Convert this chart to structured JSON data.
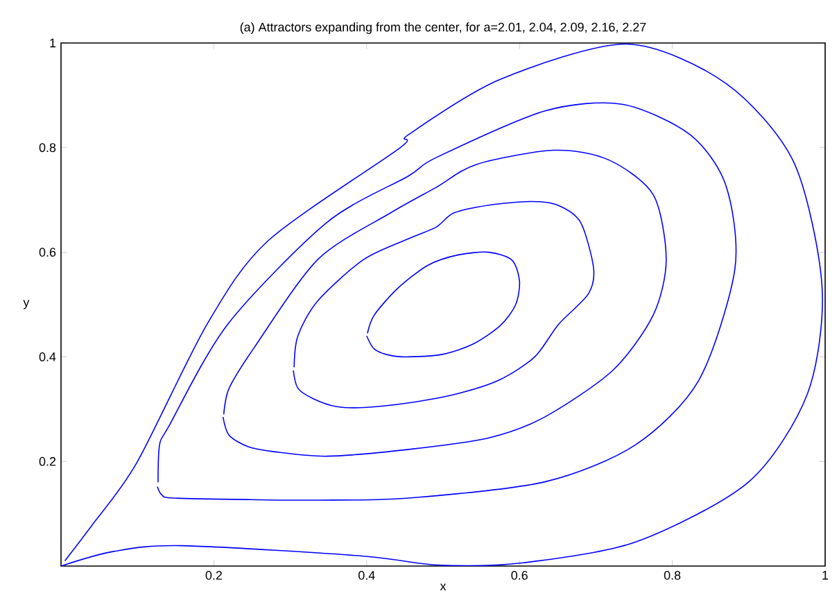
{
  "chart_data": {
    "type": "line",
    "title": "(a) Attractors expanding from the center, for a=2.01, 2.04, 2.09, 2.16, 2.27",
    "xlabel": "x",
    "ylabel": "y",
    "xlim": [
      0,
      1
    ],
    "ylim": [
      0,
      1
    ],
    "xticks": [
      0.2,
      0.4,
      0.6,
      0.8,
      1
    ],
    "yticks": [
      0.2,
      0.4,
      0.6,
      0.8,
      1
    ],
    "grid": false,
    "marker": "none",
    "line_style": "solid",
    "series": [
      {
        "color": "#0000ff",
        "x": [
          0.4,
          0.41,
          0.43,
          0.455,
          0.5,
          0.54,
          0.575,
          0.595,
          0.6,
          0.59,
          0.56,
          0.52,
          0.48,
          0.44,
          0.41,
          0.401
        ],
        "values": [
          0.44,
          0.415,
          0.403,
          0.4,
          0.405,
          0.425,
          0.46,
          0.5,
          0.545,
          0.585,
          0.6,
          0.595,
          0.575,
          0.53,
          0.48,
          0.445
        ]
      },
      {
        "color": "#0000ff",
        "x": [
          0.304,
          0.31,
          0.33,
          0.36,
          0.396,
          0.455,
          0.52,
          0.574,
          0.62,
          0.651,
          0.69,
          0.697,
          0.68,
          0.65,
          0.615,
          0.56,
          0.514,
          0.491,
          0.455,
          0.396,
          0.336,
          0.31,
          0.305
        ],
        "values": [
          0.374,
          0.34,
          0.32,
          0.305,
          0.303,
          0.312,
          0.33,
          0.356,
          0.4,
          0.462,
          0.52,
          0.569,
          0.657,
          0.69,
          0.697,
          0.69,
          0.675,
          0.648,
          0.626,
          0.586,
          0.507,
          0.44,
          0.38
        ]
      },
      {
        "color": "#0000ff",
        "x": [
          0.212,
          0.22,
          0.245,
          0.277,
          0.348,
          0.455,
          0.56,
          0.633,
          0.722,
          0.775,
          0.792,
          0.775,
          0.716,
          0.645,
          0.544,
          0.491,
          0.431,
          0.336,
          0.253,
          0.22,
          0.213
        ],
        "values": [
          0.285,
          0.25,
          0.228,
          0.219,
          0.21,
          0.223,
          0.245,
          0.285,
          0.374,
          0.48,
          0.586,
          0.71,
          0.777,
          0.795,
          0.768,
          0.724,
          0.675,
          0.586,
          0.418,
          0.34,
          0.29
        ]
      },
      {
        "color": "#0000ff",
        "x": [
          0.126,
          0.132,
          0.147,
          0.25,
          0.336,
          0.455,
          0.633,
          0.752,
          0.835,
          0.882,
          0.87,
          0.823,
          0.734,
          0.633,
          0.491,
          0.455,
          0.348,
          0.218,
          0.141,
          0.129,
          0.127
        ],
        "values": [
          0.152,
          0.136,
          0.13,
          0.127,
          0.126,
          0.13,
          0.161,
          0.232,
          0.356,
          0.569,
          0.728,
          0.825,
          0.883,
          0.87,
          0.781,
          0.746,
          0.657,
          0.462,
          0.267,
          0.232,
          0.16
        ]
      },
      {
        "color": "#0000ff",
        "x": [
          0,
          0.069,
          0.158,
          0.396,
          0.491,
          0.603,
          0.752,
          0.9,
          0.977,
          0.996,
          0.959,
          0.87,
          0.74,
          0.574,
          0.455,
          0.443,
          0.271,
          0.191,
          0.099,
          0.04,
          0.005
        ],
        "values": [
          0,
          0.028,
          0.039,
          0.019,
          0.002,
          0.006,
          0.046,
          0.161,
          0.33,
          0.533,
          0.772,
          0.923,
          0.998,
          0.93,
          0.825,
          0.799,
          0.622,
          0.462,
          0.197,
          0.077,
          0.01
        ]
      }
    ]
  }
}
